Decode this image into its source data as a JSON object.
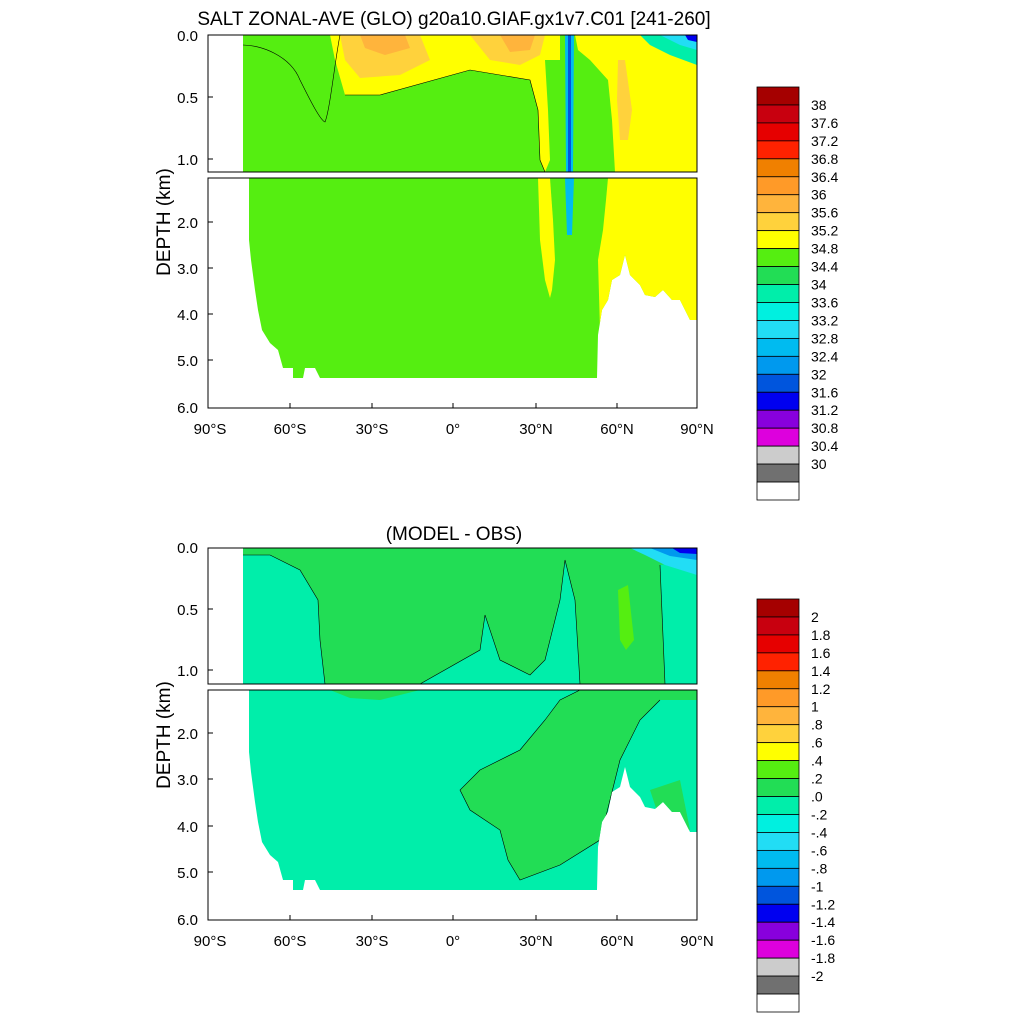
{
  "chart_data": [
    {
      "type": "heatmap",
      "title": "SALT ZONAL-AVE (GLO) g20a10.GIAF.gx1v7.C01 [241-260]",
      "xlabel": "",
      "ylabel": "DEPTH (km)",
      "x_ticks": [
        "90°S",
        "60°S",
        "30°S",
        "0°",
        "30°N",
        "60°N",
        "90°N"
      ],
      "x_tick_values": [
        -90,
        -60,
        -30,
        0,
        30,
        60,
        90
      ],
      "xlim": [
        -90,
        90
      ],
      "y_ticks_upper": [
        "0.0",
        "0.5",
        "1.0"
      ],
      "y_tick_values_upper": [
        0,
        0.5,
        1.0
      ],
      "y_ticks_lower": [
        "2.0",
        "3.0",
        "4.0",
        "5.0",
        "6.0"
      ],
      "y_tick_values_lower": [
        2,
        3,
        4,
        5,
        6
      ],
      "ylim_upper_km": [
        0,
        1.1
      ],
      "ylim_lower_km": [
        1.1,
        6.0
      ],
      "colorbar_labels": [
        "38",
        "37.6",
        "37.2",
        "36.8",
        "36.4",
        "36",
        "35.6",
        "35.2",
        "34.8",
        "34.4",
        "34",
        "33.6",
        "33.2",
        "32.8",
        "32.4",
        "32",
        "31.6",
        "31.2",
        "30.8",
        "30.4",
        "30"
      ],
      "colorbar_colors": [
        "#a50000",
        "#c8000f",
        "#e60000",
        "#ff2200",
        "#f08000",
        "#ff9a28",
        "#ffb43c",
        "#ffd23c",
        "#ffff00",
        "#55ee11",
        "#22dd55",
        "#00eeaa",
        "#00f0e0",
        "#22ddf5",
        "#00bbf0",
        "#0099ee",
        "#0055dd",
        "#0000f0",
        "#8800dd",
        "#dd00dd",
        "#cccccc",
        "#707070",
        "#ffffff"
      ],
      "fields": {
        "background_value": "34.4-34.8",
        "background_color": "#55ee11",
        "bottom_depth_km": {
          "-78": 1.1,
          "-75": 4.0,
          "-70": 4.7,
          "-65": 5.1,
          "-60": 5.35,
          "-50": 5.35,
          "-40": 5.35,
          "0": 5.35,
          "40": 5.35,
          "52": 5.35,
          "55": 4.0,
          "60": 3.5,
          "65": 3.0,
          "70": 3.3,
          "80": 3.7,
          "85": 4.1,
          "90": 4.1
        }
      }
    },
    {
      "type": "heatmap",
      "title": "(MODEL - OBS)",
      "xlabel": "",
      "ylabel": "DEPTH (km)",
      "x_ticks": [
        "90°S",
        "60°S",
        "30°S",
        "0°",
        "30°N",
        "60°N",
        "90°N"
      ],
      "x_tick_values": [
        -90,
        -60,
        -30,
        0,
        30,
        60,
        90
      ],
      "xlim": [
        -90,
        90
      ],
      "y_ticks_upper": [
        "0.0",
        "0.5",
        "1.0"
      ],
      "y_tick_values_upper": [
        0,
        0.5,
        1.0
      ],
      "y_ticks_lower": [
        "2.0",
        "3.0",
        "4.0",
        "5.0",
        "6.0"
      ],
      "y_tick_values_lower": [
        2,
        3,
        4,
        5,
        6
      ],
      "ylim_upper_km": [
        0,
        1.1
      ],
      "ylim_lower_km": [
        1.1,
        6.0
      ],
      "colorbar_labels": [
        "2",
        "1.8",
        "1.6",
        "1.4",
        "1.2",
        "1",
        ".8",
        ".6",
        ".4",
        ".2",
        ".0",
        "-.2",
        "-.4",
        "-.6",
        "-.8",
        "-1",
        "-1.2",
        "-1.4",
        "-1.6",
        "-1.8",
        "-2"
      ],
      "colorbar_colors": [
        "#a50000",
        "#c8000f",
        "#e60000",
        "#ff2200",
        "#f08000",
        "#ff9a28",
        "#ffb43c",
        "#ffd23c",
        "#ffff00",
        "#55ee11",
        "#22dd55",
        "#00eeaa",
        "#00f0e0",
        "#22ddf5",
        "#00bbf0",
        "#0099ee",
        "#0055dd",
        "#0000f0",
        "#8800dd",
        "#dd00dd",
        "#cccccc",
        "#707070",
        "#ffffff"
      ]
    }
  ]
}
